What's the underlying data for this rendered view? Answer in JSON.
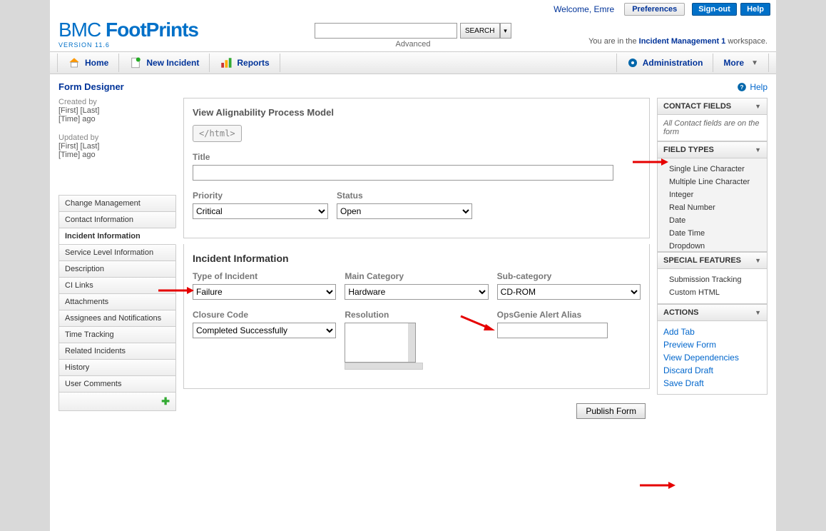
{
  "topbar": {
    "welcome": "Welcome, Emre",
    "preferences": "Preferences",
    "signout": "Sign-out",
    "help": "Help"
  },
  "logo": {
    "brand1": "BMC",
    "brand2": "FootPrints",
    "version": "VERSION 11.6"
  },
  "search": {
    "button": "SEARCH",
    "advanced": "Advanced"
  },
  "workspace": {
    "prefix": "You are in the ",
    "name": "Incident Management 1",
    "suffix": " workspace."
  },
  "nav": {
    "home": "Home",
    "new_incident": "New Incident",
    "reports": "Reports",
    "administration": "Administration",
    "more": "More"
  },
  "page_title": "Form Designer",
  "help_label": "Help",
  "meta": {
    "created_label": "Created by",
    "created_val1": "[First] [Last]",
    "created_val2": "[Time] ago",
    "updated_label": "Updated by",
    "updated_val1": "[First] [Last]",
    "updated_val2": "[Time] ago"
  },
  "tabs": [
    "Change Management",
    "Contact Information",
    "Incident Information",
    "Service Level Information",
    "Description",
    "CI Links",
    "Attachments",
    "Assignees and Notifications",
    "Time Tracking",
    "Related Incidents",
    "History",
    "User Comments"
  ],
  "active_tab_index": 2,
  "top_form": {
    "heading": "View Alignability Process Model",
    "html_tag": "</html>",
    "title_label": "Title",
    "priority_label": "Priority",
    "priority_value": "Critical",
    "status_label": "Status",
    "status_value": "Open"
  },
  "incident_form": {
    "heading": "Incident Information",
    "type_label": "Type of Incident",
    "type_value": "Failure",
    "main_cat_label": "Main Category",
    "main_cat_value": "Hardware",
    "sub_cat_label": "Sub-category",
    "sub_cat_value": "CD-ROM",
    "closure_label": "Closure Code",
    "closure_value": "Completed Successfully",
    "resolution_label": "Resolution",
    "opsgenie_label": "OpsGenie Alert Alias"
  },
  "publish_btn": "Publish Form",
  "panels": {
    "contact_fields": {
      "title": "CONTACT FIELDS",
      "body": "All Contact fields are on the form"
    },
    "field_types": {
      "title": "FIELD TYPES",
      "items": [
        "Single Line Character",
        "Multiple Line Character",
        "Integer",
        "Real Number",
        "Date",
        "Date Time",
        "Dropdown"
      ]
    },
    "special": {
      "title": "SPECIAL FEATURES",
      "items": [
        "Submission Tracking",
        "Custom HTML"
      ]
    },
    "actions": {
      "title": "ACTIONS",
      "items": [
        "Add Tab",
        "Preview Form",
        "View Dependencies",
        "Discard Draft",
        "Save Draft"
      ]
    }
  },
  "colors": {
    "arrow": "#e60000"
  }
}
